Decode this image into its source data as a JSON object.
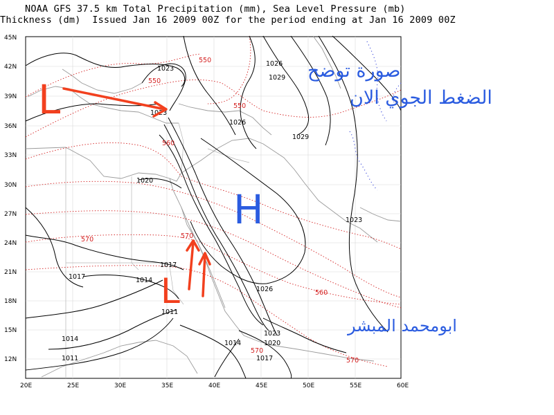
{
  "header": {
    "line1": "NOAA GFS 37.5 km Total Precipitation (mm), Sea Level Pressure (mb)",
    "line2": "Thickness (dm)  Issued Jan 16 2009 00Z for the period ending at Jan 16 2009 00Z"
  },
  "axes": {
    "lat_labels": [
      "45N",
      "42N",
      "39N",
      "36N",
      "33N",
      "30N",
      "27N",
      "24N",
      "21N",
      "18N",
      "15N",
      "12N"
    ],
    "lon_labels": [
      "20E",
      "25E",
      "30E",
      "35E",
      "40E",
      "45E",
      "50E",
      "55E",
      "60E"
    ]
  },
  "pressure_labels": [
    "1023",
    "1026",
    "1029",
    "1023",
    "1026",
    "1029",
    "1020",
    "1023",
    "1017",
    "1017",
    "1014",
    "1011",
    "1026",
    "1023",
    "1020",
    "1014",
    "1017",
    "1014",
    "1011"
  ],
  "thickness_labels": [
    "550",
    "550",
    "550",
    "560",
    "570",
    "570",
    "560",
    "570",
    "570"
  ],
  "systems": {
    "low_nw": "L",
    "low_red_sea": "L",
    "high_arabia": "H"
  },
  "annotations": {
    "arabic_line1": "صورة توضح",
    "arabic_line2": "الضغط الجوي الان",
    "signature": "ابومحمد المبشر"
  },
  "colors": {
    "isobar": "#000000",
    "thickness": "#d42020",
    "coast": "#9a9a9a",
    "annotation_red": "#f2401e",
    "annotation_blue": "#2b5ce0",
    "precip_dots": "#2a3ad8"
  }
}
